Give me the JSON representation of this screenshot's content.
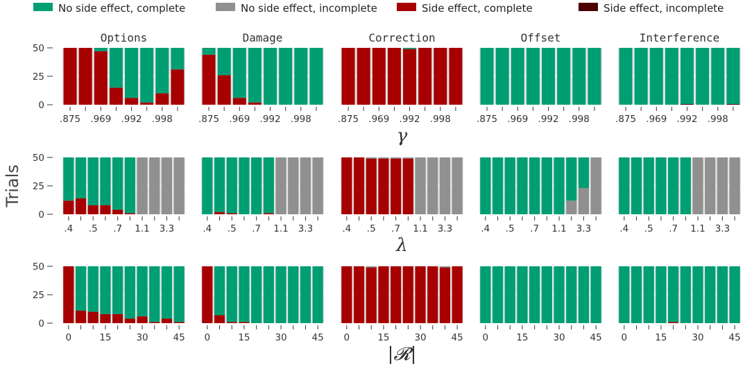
{
  "colors": {
    "no_se_complete": "#009e73",
    "no_se_incomplete": "#909090",
    "se_complete": "#a60000",
    "se_incomplete": "#4d0000",
    "panel_bg": "#e5e5e5",
    "grid": "#ffffff"
  },
  "chart_data": {
    "type": "bar",
    "stacked": true,
    "ylabel": "Trials",
    "ylim": [
      0,
      50
    ],
    "yticks": [
      0,
      25,
      50
    ],
    "legend": {
      "position": "top",
      "entries": [
        {
          "key": "no_se_complete",
          "label": "No side effect, complete"
        },
        {
          "key": "no_se_incomplete",
          "label": "No side effect, incomplete"
        },
        {
          "key": "se_complete",
          "label": "Side effect, complete"
        },
        {
          "key": "se_incomplete",
          "label": "Side effect, incomplete"
        }
      ]
    },
    "panels": [
      "Options",
      "Damage",
      "Correction",
      "Offset",
      "Interference"
    ],
    "rows": [
      {
        "xlabel": "γ",
        "tick_labels": [
          ".875",
          ".969",
          ".992",
          ".998"
        ],
        "tick_at": [
          0,
          2,
          4,
          6
        ],
        "values": {
          "Options": {
            "se_complete": [
              50,
              50,
              47,
              15,
              6,
              2,
              10,
              31
            ],
            "se_incomplete": [
              0,
              0,
              0,
              0,
              0,
              0,
              0,
              0
            ],
            "no_se_incomplete": [
              0,
              0,
              0,
              0,
              0,
              0,
              0,
              0
            ],
            "no_se_complete": [
              0,
              0,
              3,
              35,
              44,
              48,
              40,
              19
            ]
          },
          "Damage": {
            "se_complete": [
              44,
              26,
              6,
              2,
              0,
              0,
              0,
              0
            ],
            "se_incomplete": [
              0,
              0,
              0,
              0,
              0,
              0,
              0,
              0
            ],
            "no_se_incomplete": [
              0,
              0,
              0,
              0,
              0,
              0,
              0,
              0
            ],
            "no_se_complete": [
              6,
              24,
              44,
              48,
              50,
              50,
              50,
              50
            ]
          },
          "Correction": {
            "se_complete": [
              50,
              50,
              50,
              50,
              49,
              50,
              50,
              50
            ],
            "se_incomplete": [
              0,
              0,
              0,
              0,
              0,
              0,
              0,
              0
            ],
            "no_se_incomplete": [
              0,
              0,
              0,
              0,
              0,
              0,
              0,
              0
            ],
            "no_se_complete": [
              0,
              0,
              0,
              0,
              1,
              0,
              0,
              0
            ]
          },
          "Offset": {
            "se_complete": [
              0,
              0,
              0,
              0,
              0,
              0,
              0,
              0
            ],
            "se_incomplete": [
              0,
              0,
              0,
              0,
              0,
              0,
              0,
              0
            ],
            "no_se_incomplete": [
              0,
              0,
              0,
              0,
              0,
              0,
              0,
              0
            ],
            "no_se_complete": [
              50,
              50,
              50,
              50,
              50,
              50,
              50,
              50
            ]
          },
          "Interference": {
            "se_complete": [
              0,
              0,
              0,
              0,
              0,
              0,
              0,
              0
            ],
            "se_incomplete": [
              0,
              0,
              0,
              0,
              0.6,
              0,
              0,
              0.6
            ],
            "no_se_incomplete": [
              0,
              0,
              0,
              0,
              0,
              0,
              0,
              0
            ],
            "no_se_complete": [
              50,
              50,
              50,
              50,
              49.4,
              50,
              50,
              49.4
            ]
          }
        }
      },
      {
        "xlabel": "λ",
        "tick_labels": [
          ".4",
          ".5",
          ".7",
          "1.1",
          "3.3"
        ],
        "tick_at": [
          0,
          2,
          4,
          6,
          8
        ],
        "values": {
          "Options": {
            "se_complete": [
              12,
              14,
              8,
              8,
              4,
              1,
              0,
              0,
              0,
              0
            ],
            "se_incomplete": [
              0,
              0,
              0,
              0,
              0,
              0,
              0,
              0,
              0,
              0
            ],
            "no_se_incomplete": [
              0,
              0,
              0,
              0,
              0,
              0,
              50,
              50,
              50,
              50
            ],
            "no_se_complete": [
              38,
              36,
              42,
              42,
              46,
              49,
              0,
              0,
              0,
              0
            ]
          },
          "Damage": {
            "se_complete": [
              0,
              2,
              1,
              0,
              0,
              1,
              0,
              0,
              0,
              0
            ],
            "se_incomplete": [
              0,
              0,
              0,
              0,
              0,
              0,
              0,
              0,
              0,
              0
            ],
            "no_se_incomplete": [
              0,
              0,
              0,
              0,
              0,
              0,
              50,
              50,
              50,
              50
            ],
            "no_se_complete": [
              50,
              48,
              49,
              50,
              50,
              49,
              0,
              0,
              0,
              0
            ]
          },
          "Correction": {
            "se_complete": [
              50,
              50,
              49,
              49,
              49,
              49,
              0,
              0,
              0,
              0
            ],
            "se_incomplete": [
              0,
              0,
              0,
              0,
              0,
              0,
              0,
              0,
              0,
              0
            ],
            "no_se_incomplete": [
              0,
              0,
              1,
              1,
              1,
              1,
              50,
              50,
              50,
              50
            ],
            "no_se_complete": [
              0,
              0,
              0,
              0,
              0,
              0,
              0,
              0,
              0,
              0
            ]
          },
          "Offset": {
            "se_complete": [
              0,
              0,
              0,
              0,
              0,
              0,
              0,
              0,
              0,
              0
            ],
            "se_incomplete": [
              0,
              0,
              0,
              0,
              0,
              0,
              0,
              0,
              0,
              0
            ],
            "no_se_incomplete": [
              0,
              0,
              0,
              0,
              0,
              0,
              0,
              12,
              23,
              50
            ],
            "no_se_complete": [
              50,
              50,
              50,
              50,
              50,
              50,
              50,
              38,
              27,
              0
            ]
          },
          "Interference": {
            "se_complete": [
              0,
              0,
              0,
              0,
              0,
              0,
              0,
              0,
              0,
              0
            ],
            "se_incomplete": [
              0,
              0,
              0,
              0,
              0,
              0,
              0,
              0,
              0,
              0
            ],
            "no_se_incomplete": [
              0,
              0,
              0,
              0,
              0,
              0,
              50,
              50,
              50,
              50
            ],
            "no_se_complete": [
              50,
              50,
              50,
              50,
              50,
              50,
              0,
              0,
              0,
              0
            ]
          }
        }
      },
      {
        "xlabel": "|𝓡|",
        "tick_labels": [
          "0",
          "15",
          "30",
          "45"
        ],
        "tick_at": [
          0,
          3,
          6,
          9
        ],
        "values": {
          "Options": {
            "se_complete": [
              50,
              11,
              10,
              8,
              8,
              4,
              6,
              1,
              4,
              1
            ],
            "se_incomplete": [
              0,
              0,
              0,
              0,
              0,
              0,
              0,
              0,
              0,
              0
            ],
            "no_se_incomplete": [
              0,
              0,
              0,
              0,
              0,
              0,
              0,
              0,
              0,
              0
            ],
            "no_se_complete": [
              0,
              39,
              40,
              42,
              42,
              46,
              44,
              49,
              46,
              49
            ]
          },
          "Damage": {
            "se_complete": [
              50,
              7,
              1,
              1,
              0,
              0,
              0,
              0,
              0,
              0
            ],
            "se_incomplete": [
              0,
              0,
              0,
              0,
              0,
              0,
              0,
              0,
              0,
              0
            ],
            "no_se_incomplete": [
              0,
              0,
              0,
              0,
              0,
              0,
              0,
              0,
              0,
              0
            ],
            "no_se_complete": [
              0,
              43,
              49,
              49,
              50,
              50,
              50,
              50,
              50,
              50
            ]
          },
          "Correction": {
            "se_complete": [
              50,
              50,
              49,
              50,
              50,
              50,
              50,
              50,
              49,
              50
            ],
            "se_incomplete": [
              0,
              0,
              0,
              0,
              0,
              0,
              0,
              0,
              0,
              0
            ],
            "no_se_incomplete": [
              0,
              0,
              1,
              0,
              0,
              0,
              0,
              0,
              1,
              0
            ],
            "no_se_complete": [
              0,
              0,
              0,
              0,
              0,
              0,
              0,
              0,
              0,
              0
            ]
          },
          "Offset": {
            "se_complete": [
              0,
              0,
              0,
              0,
              0,
              0,
              0,
              0,
              0,
              0
            ],
            "se_incomplete": [
              0,
              0,
              0,
              0,
              0,
              0,
              0,
              0,
              0,
              0
            ],
            "no_se_incomplete": [
              0,
              0,
              0,
              0,
              0,
              0,
              0,
              0,
              0,
              0
            ],
            "no_se_complete": [
              50,
              50,
              50,
              50,
              50,
              50,
              50,
              50,
              50,
              50
            ]
          },
          "Interference": {
            "se_complete": [
              0,
              0,
              0,
              0,
              1,
              0,
              0,
              0,
              0,
              0
            ],
            "se_incomplete": [
              0,
              0,
              0,
              0,
              0,
              0,
              0,
              0,
              0,
              0
            ],
            "no_se_incomplete": [
              0,
              0,
              0,
              0,
              0,
              0,
              0,
              0,
              0,
              0
            ],
            "no_se_complete": [
              50,
              50,
              50,
              50,
              49,
              50,
              50,
              50,
              50,
              50
            ]
          }
        }
      }
    ]
  }
}
